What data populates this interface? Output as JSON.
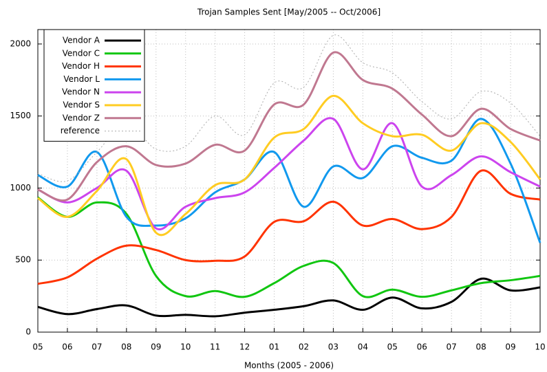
{
  "chart_data": {
    "type": "line",
    "title": "Trojan Samples Sent  [May/2005 -- Oct/2006]",
    "x_label": "Months (2005 - 2006)",
    "categories": [
      "05",
      "06",
      "07",
      "08",
      "09",
      "10",
      "11",
      "12",
      "01",
      "02",
      "03",
      "04",
      "05",
      "06",
      "07",
      "08",
      "09",
      "10"
    ],
    "ylim": [
      0,
      2100
    ],
    "yticks": [
      0,
      500,
      1000,
      1500,
      2000
    ],
    "grid": true,
    "legend": "top-left",
    "smooth": true,
    "series": [
      {
        "name": "Vendor A",
        "color": "#000000",
        "values": [
          175,
          125,
          160,
          185,
          115,
          120,
          110,
          135,
          155,
          180,
          220,
          155,
          240,
          165,
          210,
          370,
          290,
          310
        ]
      },
      {
        "name": "Vendor C",
        "color": "#11c611",
        "values": [
          935,
          800,
          900,
          820,
          390,
          250,
          285,
          245,
          340,
          460,
          480,
          250,
          295,
          245,
          290,
          340,
          360,
          390
        ]
      },
      {
        "name": "Vendor H",
        "color": "#ff3300",
        "values": [
          335,
          380,
          510,
          600,
          570,
          500,
          495,
          525,
          765,
          770,
          905,
          740,
          785,
          715,
          800,
          1120,
          960,
          920
        ]
      },
      {
        "name": "Vendor L",
        "color": "#1199ee",
        "values": [
          1090,
          1010,
          1250,
          800,
          740,
          790,
          970,
          1060,
          1250,
          870,
          1150,
          1070,
          1290,
          1210,
          1190,
          1480,
          1170,
          620
        ]
      },
      {
        "name": "Vendor N",
        "color": "#cc44ee",
        "values": [
          990,
          900,
          1000,
          1120,
          720,
          870,
          930,
          970,
          1140,
          1330,
          1480,
          1130,
          1450,
          1010,
          1090,
          1220,
          1110,
          1010
        ]
      },
      {
        "name": "Vendor S",
        "color": "#ffcc22",
        "values": [
          930,
          800,
          980,
          1200,
          690,
          820,
          1020,
          1060,
          1350,
          1410,
          1640,
          1450,
          1360,
          1370,
          1260,
          1450,
          1320,
          1060
        ]
      },
      {
        "name": "Vendor Z",
        "color": "#c07890",
        "values": [
          990,
          920,
          1180,
          1290,
          1160,
          1170,
          1300,
          1260,
          1580,
          1580,
          1940,
          1750,
          1690,
          1510,
          1360,
          1550,
          1410,
          1330
        ]
      },
      {
        "name": "reference",
        "color": "#aaaaaa",
        "dashed": true,
        "values": [
          1100,
          1050,
          1250,
          1450,
          1270,
          1290,
          1500,
          1370,
          1730,
          1700,
          2060,
          1870,
          1800,
          1600,
          1480,
          1670,
          1590,
          1360
        ]
      }
    ]
  }
}
